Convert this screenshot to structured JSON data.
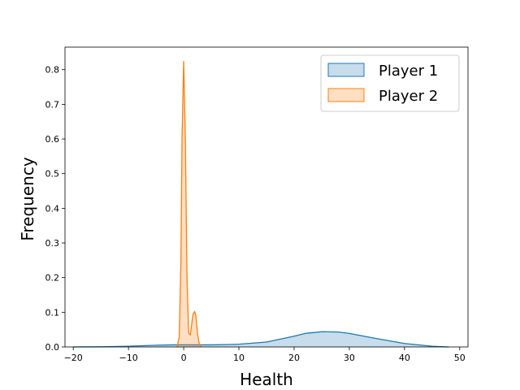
{
  "chart_data": {
    "type": "area",
    "title": "",
    "xlabel": "Health",
    "ylabel": "Frequency",
    "xlim": [
      -21.5,
      51.5
    ],
    "ylim": [
      0,
      0.865
    ],
    "xticks": [
      -20,
      -10,
      0,
      10,
      20,
      30,
      40,
      50
    ],
    "yticks": [
      0.0,
      0.1,
      0.2,
      0.3,
      0.4,
      0.5,
      0.6,
      0.7,
      0.8
    ],
    "grid": false,
    "legend_position": "top-right",
    "series": [
      {
        "name": "Player 1",
        "color": "#1f77b4",
        "x": [
          -20,
          -15,
          -10,
          -5,
          -2,
          0,
          2,
          5,
          8,
          10,
          15,
          20,
          22,
          25,
          28,
          30,
          35,
          40,
          45,
          48
        ],
        "y": [
          0.0,
          0.0005,
          0.002,
          0.005,
          0.006,
          0.006,
          0.006,
          0.006,
          0.007,
          0.008,
          0.014,
          0.031,
          0.039,
          0.044,
          0.043,
          0.039,
          0.024,
          0.01,
          0.002,
          0.0
        ]
      },
      {
        "name": "Player 2",
        "color": "#ff7f0e",
        "x": [
          -1.2,
          -0.8,
          -0.5,
          -0.3,
          0.0,
          0.3,
          0.6,
          0.9,
          1.2,
          1.4,
          1.7,
          2.0,
          2.2,
          2.5,
          2.8,
          3.1
        ],
        "y": [
          0.0,
          0.03,
          0.25,
          0.6,
          0.825,
          0.6,
          0.2,
          0.04,
          0.035,
          0.06,
          0.095,
          0.102,
          0.09,
          0.04,
          0.01,
          0.0
        ]
      }
    ]
  }
}
